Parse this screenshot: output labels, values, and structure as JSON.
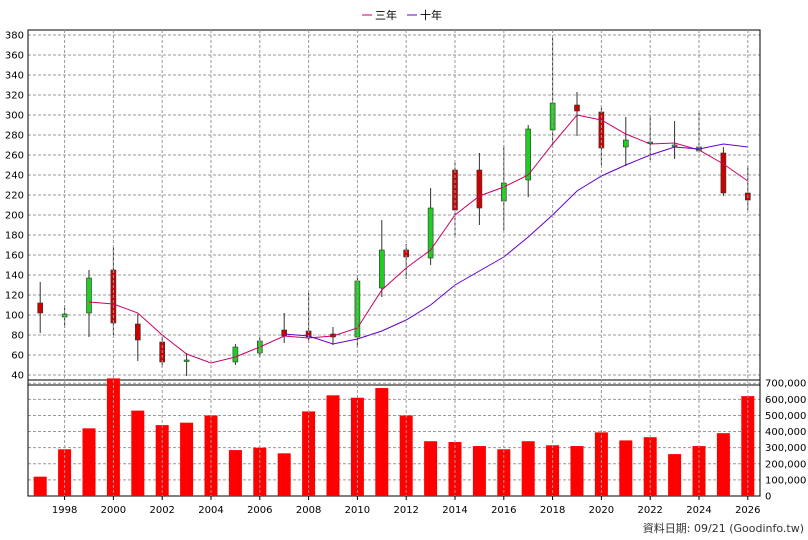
{
  "legend": {
    "ma3_label": "三年",
    "ma10_label": "十年"
  },
  "footer_text": "資料日期: 09/21 (Goodinfo.tw)",
  "colors": {
    "up": "#22cc22",
    "down": "#cc0000",
    "volume": "#ff0000",
    "ma3": "#cc0066",
    "ma10": "#6600cc",
    "grid": "#999999",
    "axis": "#000000"
  },
  "chart_data": [
    {
      "type": "candlestick",
      "years": [
        1997,
        1998,
        1999,
        2000,
        2001,
        2002,
        2003,
        2004,
        2005,
        2006,
        2007,
        2008,
        2009,
        2010,
        2011,
        2012,
        2013,
        2014,
        2015,
        2016,
        2017,
        2018,
        2019,
        2020,
        2021,
        2022,
        2023,
        2024,
        2025,
        2026
      ],
      "open": [
        112,
        98,
        102,
        145,
        91,
        73,
        54,
        null,
        53,
        62,
        85,
        84,
        81,
        78,
        127,
        165,
        157,
        245,
        245,
        214,
        235,
        285,
        310,
        303,
        268,
        272,
        270,
        264,
        262,
        222
      ],
      "close": [
        102,
        101,
        137,
        92,
        75,
        53,
        55,
        null,
        68,
        74,
        79,
        78,
        78,
        134,
        165,
        158,
        207,
        205,
        207,
        232,
        286,
        312,
        304,
        267,
        275,
        273,
        270,
        268,
        222,
        215
      ],
      "high": [
        133,
        110,
        145,
        168,
        101,
        78,
        62,
        null,
        71,
        78,
        102,
        122,
        88,
        140,
        195,
        171,
        227,
        252,
        262,
        270,
        290,
        377,
        323,
        309,
        298,
        300,
        294,
        304,
        268,
        249
      ],
      "low": [
        82,
        87,
        78,
        80,
        54,
        48,
        39,
        null,
        50,
        58,
        72,
        72,
        70,
        68,
        118,
        136,
        150,
        180,
        190,
        185,
        218,
        270,
        279,
        250,
        249,
        255,
        256,
        262,
        219,
        205
      ],
      "ma3": [
        null,
        null,
        113,
        111,
        102,
        80,
        61,
        52,
        58,
        68,
        79,
        77,
        79,
        87,
        125,
        147,
        165,
        200,
        219,
        228,
        240,
        271,
        300,
        295,
        281,
        271,
        272,
        265,
        251,
        234
      ],
      "ma10": [
        null,
        null,
        null,
        null,
        null,
        null,
        null,
        null,
        null,
        null,
        81,
        79,
        71,
        76,
        84,
        95,
        110,
        130,
        144,
        158,
        178,
        200,
        224,
        239,
        250,
        260,
        268,
        266,
        271,
        268
      ],
      "ylim": [
        30,
        385
      ],
      "yticks": [
        40,
        60,
        80,
        100,
        120,
        140,
        160,
        180,
        200,
        220,
        240,
        260,
        280,
        300,
        320,
        340,
        360,
        380
      ],
      "series": [
        {
          "name": "三年",
          "key": "ma3"
        },
        {
          "name": "十年",
          "key": "ma10"
        }
      ]
    },
    {
      "type": "bar",
      "years": [
        1997,
        1998,
        1999,
        2000,
        2001,
        2002,
        2003,
        2004,
        2005,
        2006,
        2007,
        2008,
        2009,
        2010,
        2011,
        2012,
        2013,
        2014,
        2015,
        2016,
        2017,
        2018,
        2019,
        2020,
        2021,
        2022,
        2023,
        2024,
        2025,
        2026
      ],
      "values": [
        120000,
        290000,
        420000,
        730000,
        530000,
        440000,
        455000,
        500000,
        285000,
        300000,
        265000,
        525000,
        625000,
        610000,
        670000,
        500000,
        340000,
        335000,
        310000,
        290000,
        340000,
        315000,
        310000,
        395000,
        345000,
        365000,
        260000,
        310000,
        390000,
        620000
      ],
      "ylim": [
        0,
        720000
      ],
      "yticks": [
        0,
        100000,
        200000,
        300000,
        400000,
        500000,
        600000,
        700000
      ],
      "ytick_labels": [
        "0",
        "100,000",
        "200,000",
        "300,000",
        "400,000",
        "500,000",
        "600,000",
        "700,000"
      ],
      "xtick_labels": [
        "1998",
        "2000",
        "2002",
        "2004",
        "2006",
        "2008",
        "2010",
        "2012",
        "2014",
        "2016",
        "2018",
        "2020",
        "2022",
        "2024",
        "2026"
      ]
    }
  ]
}
